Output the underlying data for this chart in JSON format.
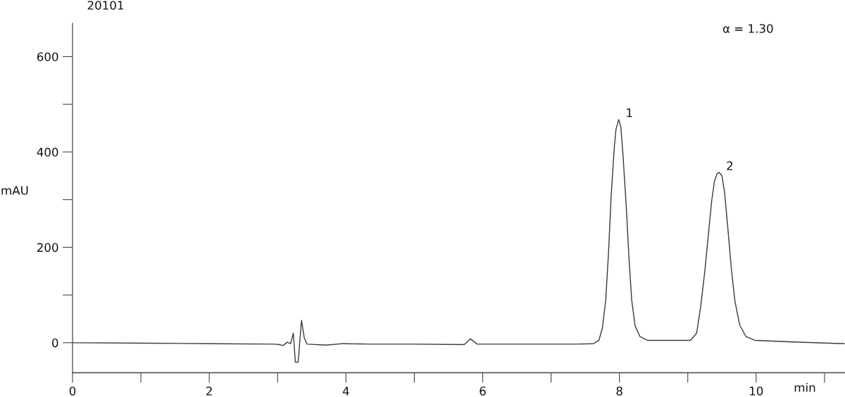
{
  "chart_data": {
    "type": "line",
    "title": "20101",
    "xlabel": "min",
    "ylabel": "mAU",
    "annotations": [
      "α = 1.30",
      {
        "text": "1",
        "x": 7.99,
        "y": 468
      },
      {
        "text": "2",
        "x": 9.46,
        "y": 357
      }
    ],
    "x": [
      0,
      1.0,
      2.0,
      2.95,
      3.02,
      3.08,
      3.14,
      3.19,
      3.23,
      3.26,
      3.3,
      3.35,
      3.39,
      3.43,
      3.71,
      3.96,
      4.36,
      5.0,
      5.73,
      5.82,
      5.92,
      6.14,
      7.0,
      7.38,
      7.62,
      7.7,
      7.75,
      7.8,
      7.84,
      7.88,
      7.925,
      7.95,
      7.99,
      8.02,
      8.05,
      8.1,
      8.14,
      8.18,
      8.23,
      8.3,
      8.41,
      9.04,
      9.13,
      9.19,
      9.25,
      9.3,
      9.35,
      9.39,
      9.43,
      9.46,
      9.5,
      9.54,
      9.59,
      9.64,
      9.69,
      9.76,
      9.85,
      9.98,
      10.46,
      11.29
    ],
    "values": [
      0,
      -1,
      -2,
      -3,
      -4,
      -6,
      1,
      -2,
      20,
      -41,
      -41,
      47,
      10,
      -3,
      -5,
      -2,
      -3,
      -3,
      -4,
      8,
      -3,
      -3,
      -3,
      -3,
      -2,
      5,
      30,
      89,
      187,
      310,
      409,
      448,
      468,
      453,
      399,
      286,
      178,
      89,
      35,
      13,
      5,
      5,
      20,
      77,
      151,
      224,
      298,
      338,
      355,
      357,
      350,
      313,
      234,
      151,
      87,
      37,
      13,
      5,
      2,
      -2
    ],
    "color": "#3a3a3a",
    "xlim": [
      0,
      11.3
    ],
    "ylim": [
      -63,
      670
    ],
    "xticks": [
      0,
      {
        "value": 1,
        "label": null
      },
      2,
      {
        "value": 3,
        "label": null
      },
      4,
      {
        "value": 5,
        "label": null
      },
      6,
      {
        "value": 7,
        "label": null
      },
      8,
      {
        "value": 9,
        "label": null
      },
      10,
      {
        "value": 11,
        "label": null
      }
    ],
    "yticks": [
      0,
      {
        "value": 100,
        "label": null
      },
      200,
      {
        "value": 300,
        "label": null
      },
      400,
      {
        "value": 500,
        "label": null
      },
      600
    ]
  }
}
